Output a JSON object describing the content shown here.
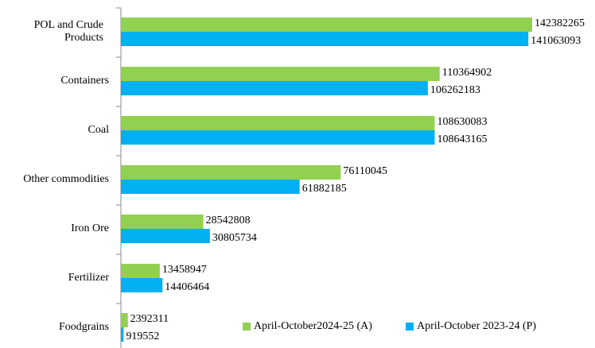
{
  "chart_data": {
    "type": "hbar",
    "categories": [
      "POL and Crude Products",
      "Containers",
      "Coal",
      "Other commodities",
      "Iron Ore",
      "Fertilizer",
      "Foodgrains"
    ],
    "series": [
      {
        "name": "April-October2024-25 (A)",
        "color": "#92d050",
        "values": [
          142382265,
          110364902,
          108630083,
          76110045,
          28542808,
          13458947,
          2392311
        ]
      },
      {
        "name": "April-October 2023-24 (P)",
        "color": "#00b0f0",
        "values": [
          141063093,
          106262183,
          108643165,
          61882185,
          30805734,
          14406464,
          919552
        ]
      }
    ],
    "legend": "bottom-right"
  }
}
